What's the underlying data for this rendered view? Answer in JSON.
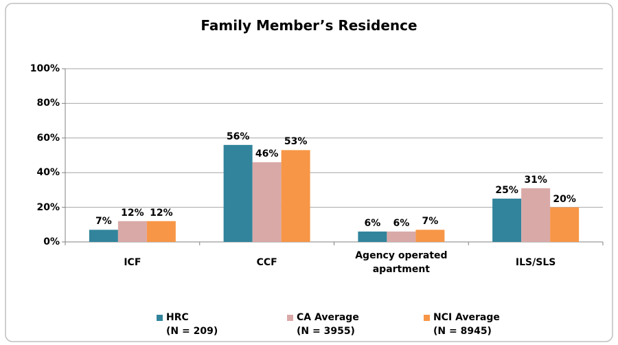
{
  "chart_data": {
    "type": "bar",
    "title": "Family Member’s Residence",
    "categories": [
      "ICF",
      "CCF",
      "Agency operated\napartment",
      "ILS/SLS"
    ],
    "series": [
      {
        "name": "HRC\n(N = 209)",
        "color": "#31849b",
        "values": [
          7,
          56,
          6,
          25
        ],
        "value_labels": [
          "7%",
          "56%",
          "6%",
          "25%"
        ]
      },
      {
        "name": "CA Average\n(N = 3955)",
        "color": "#d9a9a8",
        "values": [
          12,
          46,
          6,
          31
        ],
        "value_labels": [
          "12%",
          "46%",
          "6%",
          "31%"
        ]
      },
      {
        "name": "NCI Average\n(N = 8945)",
        "color": "#f79646",
        "values": [
          12,
          53,
          7,
          20
        ],
        "value_labels": [
          "12%",
          "53%",
          "7%",
          "20%"
        ]
      }
    ],
    "ylim": [
      0,
      100
    ],
    "yticks": [
      {
        "value": 0,
        "label": "0%"
      },
      {
        "value": 20,
        "label": "20%"
      },
      {
        "value": 40,
        "label": "40%"
      },
      {
        "value": 60,
        "label": "60%"
      },
      {
        "value": 80,
        "label": "80%"
      },
      {
        "value": 100,
        "label": "100%"
      }
    ],
    "grid": true
  }
}
